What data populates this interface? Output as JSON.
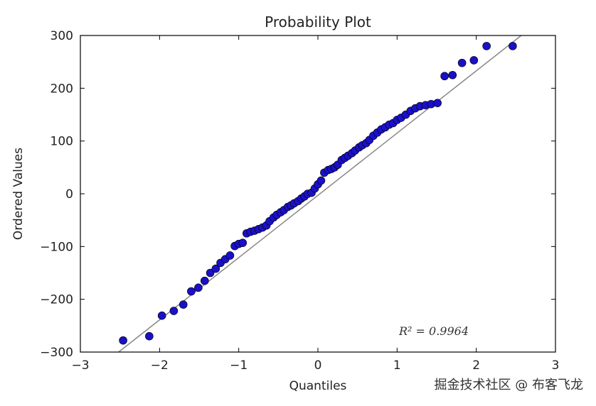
{
  "chart_data": {
    "type": "scatter",
    "title": "Probability Plot",
    "xlabel": "Quantiles",
    "ylabel": "Ordered Values",
    "xlim": [
      -3,
      3
    ],
    "ylim": [
      -300,
      300
    ],
    "xticks": [
      -3,
      -2,
      -1,
      0,
      1,
      2,
      3
    ],
    "yticks": [
      -300,
      -200,
      -100,
      0,
      100,
      200,
      300
    ],
    "xtick_labels": [
      "−3",
      "−2",
      "−1",
      "0",
      "1",
      "2",
      "3"
    ],
    "ytick_labels": [
      "−300",
      "−200",
      "−100",
      "0",
      "100",
      "200",
      "300"
    ],
    "grid": false,
    "annotation": "R² = 0.9964",
    "marker_color": "#1a10c8",
    "fit_line_color": "#888888",
    "fit_line": {
      "slope": 118,
      "intercept": -3
    },
    "series": [
      {
        "x": [
          -2.46,
          -2.13,
          -1.97,
          -1.82,
          -1.7,
          -1.6,
          -1.51,
          -1.43,
          -1.36,
          -1.29,
          -1.23,
          -1.17,
          -1.11,
          -1.05,
          -1.0,
          -0.95,
          -0.9,
          -0.85,
          -0.8,
          -0.75,
          -0.7,
          -0.65,
          -0.61,
          -0.56,
          -0.52,
          -0.47,
          -0.43,
          -0.38,
          -0.34,
          -0.3,
          -0.25,
          -0.21,
          -0.17,
          -0.13,
          -0.08,
          -0.04,
          0.0,
          0.04,
          0.08,
          0.13,
          0.17,
          0.21,
          0.25,
          0.3,
          0.34,
          0.38,
          0.43,
          0.47,
          0.52,
          0.56,
          0.61,
          0.65,
          0.7,
          0.75,
          0.8,
          0.85,
          0.9,
          0.95,
          1.0,
          1.05,
          1.11,
          1.17,
          1.23,
          1.29,
          1.36,
          1.43,
          1.51,
          1.6,
          1.7,
          1.82,
          1.97,
          2.13,
          2.46
        ],
        "y": [
          -278,
          -270,
          -231,
          -222,
          -210,
          -185,
          -178,
          -165,
          -150,
          -142,
          -131,
          -124,
          -117,
          -99,
          -95,
          -93,
          -75,
          -72,
          -70,
          -67,
          -64,
          -60,
          -52,
          -45,
          -40,
          -35,
          -31,
          -25,
          -22,
          -18,
          -14,
          -9,
          -5,
          0,
          2,
          10,
          18,
          25,
          40,
          45,
          47,
          50,
          55,
          64,
          68,
          72,
          77,
          82,
          88,
          92,
          96,
          102,
          110,
          116,
          122,
          126,
          131,
          134,
          140,
          144,
          150,
          157,
          162,
          166,
          168,
          170,
          172,
          223,
          225,
          248,
          253,
          280,
          280
        ]
      }
    ]
  },
  "watermark": "掘金技术社区 @ 布客飞龙"
}
